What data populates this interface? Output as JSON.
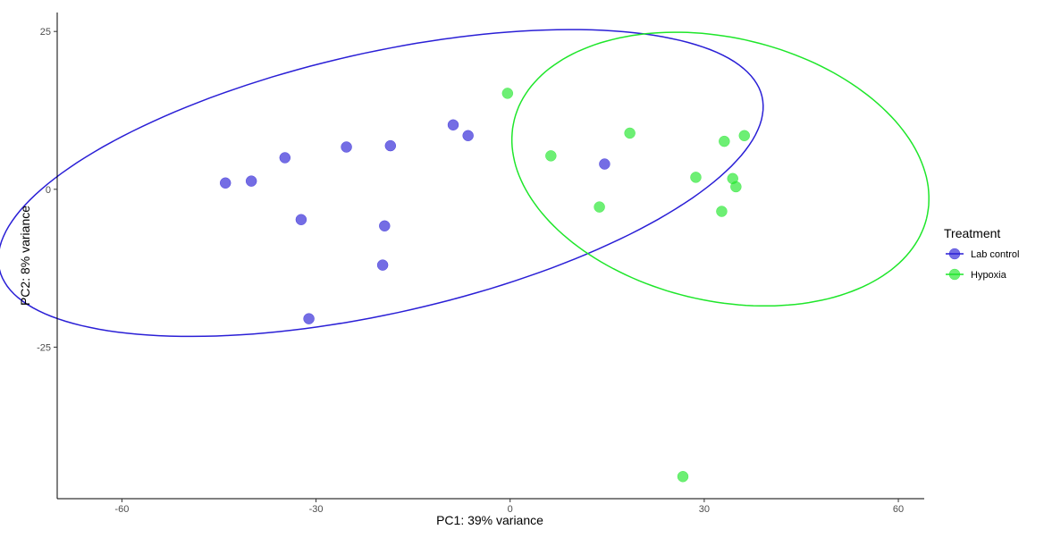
{
  "chart_data": {
    "type": "scatter",
    "xlabel": "PC1: 39% variance",
    "ylabel": "PC2: 8% variance",
    "xlim": [
      -70,
      64
    ],
    "ylim": [
      -49,
      28
    ],
    "x_ticks": [
      -60,
      -30,
      0,
      30,
      60
    ],
    "y_ticks": [
      25,
      0,
      -25
    ],
    "x_tick_labels": [
      "-60",
      "-30",
      "0",
      "30",
      "60"
    ],
    "y_tick_labels": [
      "25",
      "0",
      "-25"
    ],
    "grid": false,
    "legend": {
      "title": "Treatment",
      "position": "right"
    },
    "series": [
      {
        "name": "Lab control",
        "color": "#2a1fd6",
        "points": [
          {
            "x": -44.0,
            "y": 1.0
          },
          {
            "x": -40.0,
            "y": 1.3
          },
          {
            "x": -34.8,
            "y": 5.0
          },
          {
            "x": -25.3,
            "y": 6.7
          },
          {
            "x": -18.5,
            "y": 6.9
          },
          {
            "x": -32.3,
            "y": -4.8
          },
          {
            "x": -19.4,
            "y": -5.8
          },
          {
            "x": -19.7,
            "y": -12.0
          },
          {
            "x": -31.1,
            "y": -20.5
          },
          {
            "x": -8.8,
            "y": 10.2
          },
          {
            "x": -6.5,
            "y": 8.5
          },
          {
            "x": 14.6,
            "y": 4.0
          }
        ],
        "ellipse": {
          "cx": -20.0,
          "cy": 1.0,
          "rx": 60.5,
          "ry": 20.6,
          "angle_deg": 13.1
        }
      },
      {
        "name": "Hypoxia",
        "color": "#1ee62a",
        "points": [
          {
            "x": -0.4,
            "y": 15.2
          },
          {
            "x": 6.3,
            "y": 5.3
          },
          {
            "x": 18.5,
            "y": 8.9
          },
          {
            "x": 13.8,
            "y": -2.8
          },
          {
            "x": 28.7,
            "y": 1.9
          },
          {
            "x": 33.1,
            "y": 7.6
          },
          {
            "x": 36.2,
            "y": 8.5
          },
          {
            "x": 34.4,
            "y": 1.7
          },
          {
            "x": 34.9,
            "y": 0.4
          },
          {
            "x": 32.7,
            "y": -3.5
          },
          {
            "x": 26.7,
            "y": -45.5
          }
        ],
        "ellipse": {
          "cx": 32.5,
          "cy": 3.2,
          "rx": 32.8,
          "ry": 20.8,
          "angle_deg": -13.9
        }
      }
    ]
  }
}
